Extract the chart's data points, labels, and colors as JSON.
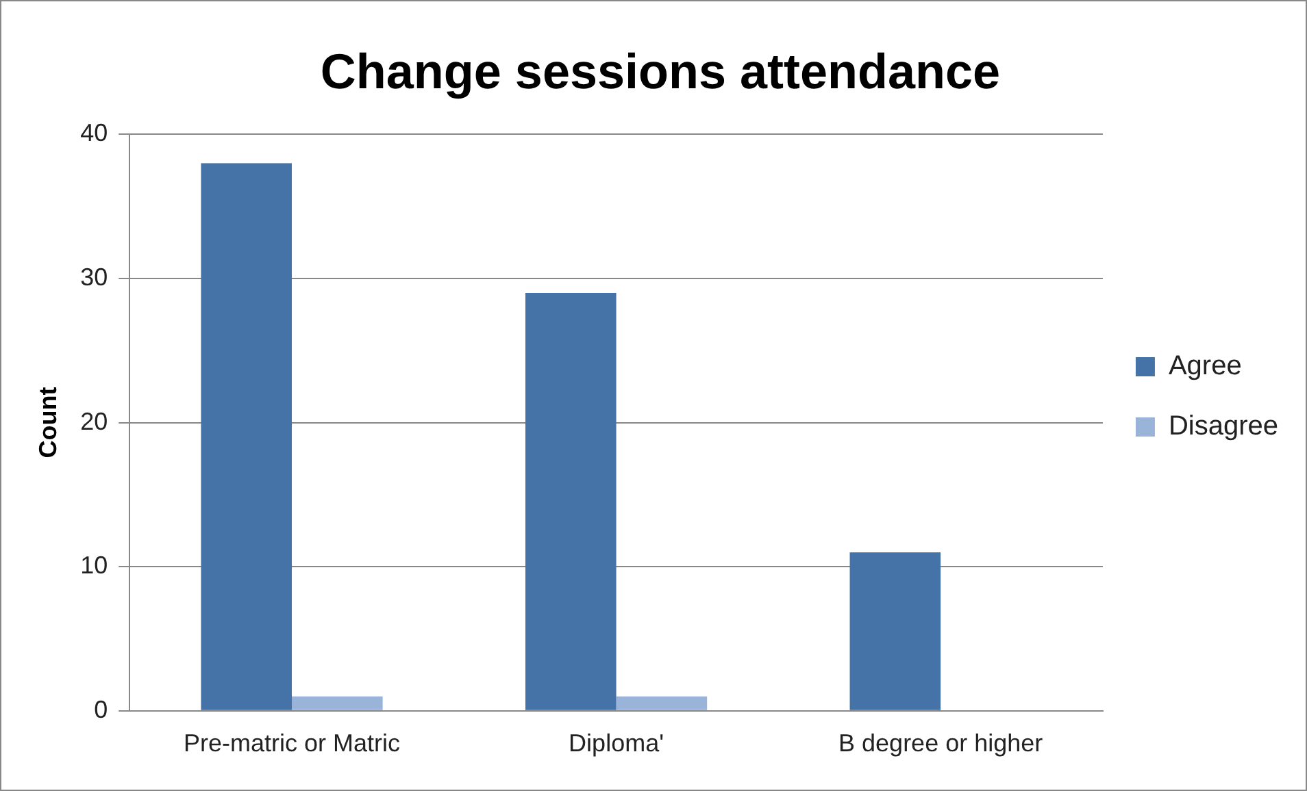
{
  "chart_data": {
    "type": "bar",
    "title": "Change sessions attendance",
    "ylabel": "Count",
    "categories": [
      "Pre-matric or Matric",
      "Diploma'",
      "B degree or higher"
    ],
    "series": [
      {
        "name": "Agree",
        "color": "#4572a7",
        "values": [
          38,
          29,
          11
        ]
      },
      {
        "name": "Disagree",
        "color": "#99b3d9",
        "values": [
          1,
          1,
          0
        ]
      }
    ],
    "ylim": [
      0,
      40
    ],
    "yticks": [
      0,
      10,
      20,
      30,
      40
    ],
    "grid": "y",
    "legend": "right"
  }
}
